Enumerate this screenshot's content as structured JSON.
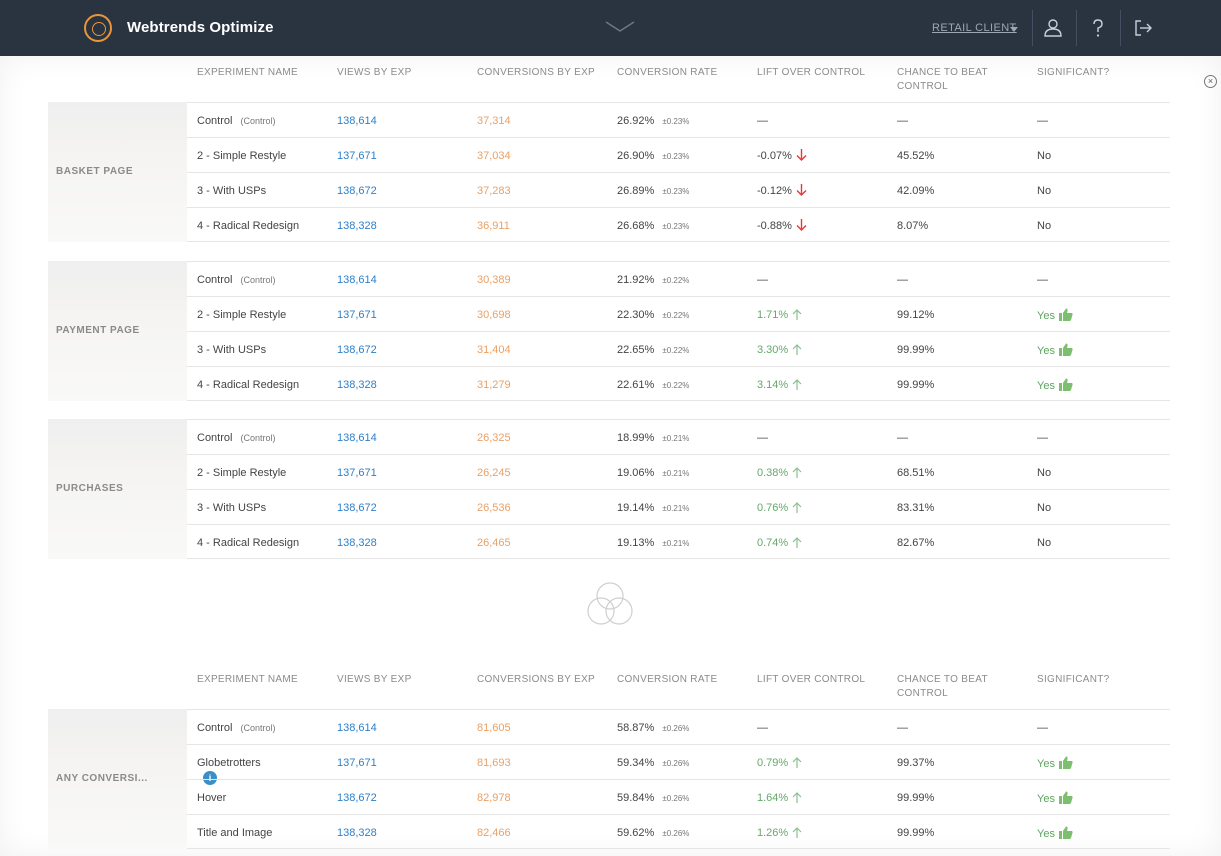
{
  "app": {
    "title": "Webtrends Optimize",
    "client": "RETAIL CLIENT"
  },
  "colors": {
    "topbar": "#2a3340",
    "brand_orange": "#e8963c",
    "views": "#2e7fc9",
    "conversions": "#eaa065",
    "positive": "#66a86a",
    "negative": "#e03b3b"
  },
  "columns": [
    "EXPERIMENT NAME",
    "VIEWS BY EXP",
    "CONVERSIONS BY EXP",
    "CONVERSION RATE",
    "LIFT OVER CONTROL",
    "CHANCE TO BEAT",
    "CONTROL",
    "SIGNIFICANT?"
  ],
  "columns2": [
    "EXPERIMENT NAME",
    "VIEWS BY EXP",
    "CONVERSIONS BY EXP",
    "CONVERSION RATE",
    "LIFT OVER CONTROL",
    "CHANCE TO BEAT",
    "CONTROL",
    "SIGNIFICANT?"
  ],
  "control_tag": "(Control)",
  "dash": "—",
  "groups": [
    {
      "label": "BASKET PAGE",
      "rows": [
        {
          "name": "Control",
          "views": "138,614",
          "conv": "37,314",
          "rate": "26.92%",
          "pm": "±0.23%",
          "lift": "—",
          "chance": "—",
          "sig": "—"
        },
        {
          "name": "2 - Simple Restyle",
          "views": "137,671",
          "conv": "37,034",
          "rate": "26.90%",
          "pm": "±0.23%",
          "lift": "-0.07%",
          "chance": "45.52%",
          "sig": "No"
        },
        {
          "name": "3 - With USPs",
          "views": "138,672",
          "conv": "37,283",
          "rate": "26.89%",
          "pm": "±0.23%",
          "lift": "-0.12%",
          "chance": "42.09%",
          "sig": "No"
        },
        {
          "name": "4 - Radical Redesign",
          "views": "138,328",
          "conv": "36,911",
          "rate": "26.68%",
          "pm": "±0.23%",
          "lift": "-0.88%",
          "chance": "8.07%",
          "sig": "No"
        }
      ]
    },
    {
      "label": "PAYMENT PAGE",
      "rows": [
        {
          "name": "Control",
          "views": "138,614",
          "conv": "30,389",
          "rate": "21.92%",
          "pm": "±0.22%",
          "lift": "—",
          "chance": "—",
          "sig": "—"
        },
        {
          "name": "2 - Simple Restyle",
          "views": "137,671",
          "conv": "30,698",
          "rate": "22.30%",
          "pm": "±0.22%",
          "lift": "1.71%",
          "chance": "99.12%",
          "sig": "Yes"
        },
        {
          "name": "3 - With USPs",
          "views": "138,672",
          "conv": "31,404",
          "rate": "22.65%",
          "pm": "±0.22%",
          "lift": "3.30%",
          "chance": "99.99%",
          "sig": "Yes"
        },
        {
          "name": "4 - Radical Redesign",
          "views": "138,328",
          "conv": "31,279",
          "rate": "22.61%",
          "pm": "±0.22%",
          "lift": "3.14%",
          "chance": "99.99%",
          "sig": "Yes"
        }
      ]
    },
    {
      "label": "PURCHASES",
      "rows": [
        {
          "name": "Control",
          "views": "138,614",
          "conv": "26,325",
          "rate": "18.99%",
          "pm": "±0.21%",
          "lift": "—",
          "chance": "—",
          "sig": "—"
        },
        {
          "name": "2 - Simple Restyle",
          "views": "137,671",
          "conv": "26,245",
          "rate": "19.06%",
          "pm": "±0.21%",
          "lift": "0.38%",
          "chance": "68.51%",
          "sig": "No"
        },
        {
          "name": "3 - With USPs",
          "views": "138,672",
          "conv": "26,536",
          "rate": "19.14%",
          "pm": "±0.21%",
          "lift": "0.76%",
          "chance": "83.31%",
          "sig": "No"
        },
        {
          "name": "4 - Radical Redesign",
          "views": "138,328",
          "conv": "26,465",
          "rate": "19.13%",
          "pm": "±0.21%",
          "lift": "0.74%",
          "chance": "82.67%",
          "sig": "No"
        }
      ]
    },
    {
      "label": "ANY CONVERSI...",
      "info_icon": "info-icon",
      "rows": [
        {
          "name": "Control",
          "views": "138,614",
          "conv": "81,605",
          "rate": "58.87%",
          "pm": "±0.26%",
          "lift": "—",
          "chance": "—",
          "sig": "—"
        },
        {
          "name": "Globetrotters",
          "views": "137,671",
          "conv": "81,693",
          "rate": "59.34%",
          "pm": "±0.26%",
          "lift": "0.79%",
          "chance": "99.37%",
          "sig": "Yes"
        },
        {
          "name": "Hover",
          "views": "138,672",
          "conv": "82,978",
          "rate": "59.84%",
          "pm": "±0.26%",
          "lift": "1.64%",
          "chance": "99.99%",
          "sig": "Yes"
        },
        {
          "name": "Title and Image",
          "views": "138,328",
          "conv": "82,466",
          "rate": "59.62%",
          "pm": "±0.26%",
          "lift": "1.26%",
          "chance": "99.99%",
          "sig": "Yes"
        }
      ]
    }
  ]
}
